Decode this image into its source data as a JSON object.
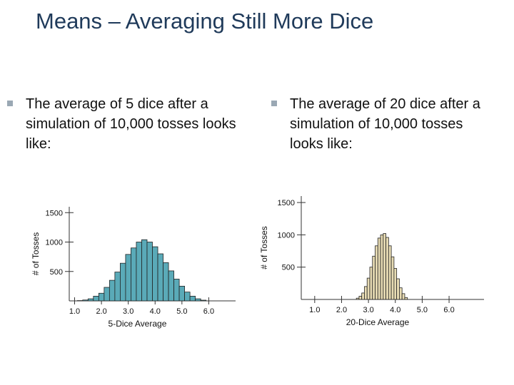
{
  "slide": {
    "title": "Means – Averaging Still More Dice",
    "bullets": [
      "The average of 5 dice after a simulation of 10,000 tosses looks like:",
      "The average of 20 dice after a simulation of 10,000 tosses looks like:"
    ]
  },
  "chart_data": [
    {
      "type": "bar",
      "xlabel": "5-Dice Average",
      "ylabel": "# of Tosses",
      "xlim": [
        0.8,
        7.0
      ],
      "ylim": [
        0,
        1600
      ],
      "xticks": [
        "1.0",
        "2.0",
        "3.0",
        "4.0",
        "5.0",
        "6.0"
      ],
      "yticks": [
        "500",
        "1000",
        "1500"
      ],
      "bar_color": "#5aaab8",
      "bin_width": 0.2,
      "x": [
        1.2,
        1.4,
        1.6,
        1.8,
        2.0,
        2.2,
        2.4,
        2.6,
        2.8,
        3.0,
        3.2,
        3.4,
        3.6,
        3.8,
        4.0,
        4.2,
        4.4,
        4.6,
        4.8,
        5.0,
        5.2,
        5.4,
        5.6,
        5.8
      ],
      "values": [
        5,
        15,
        35,
        80,
        130,
        230,
        350,
        490,
        640,
        790,
        900,
        1000,
        1040,
        1000,
        920,
        800,
        650,
        510,
        370,
        250,
        150,
        80,
        35,
        12
      ]
    },
    {
      "type": "bar",
      "xlabel": "20-Dice Average",
      "ylabel": "# of Tosses",
      "xlim": [
        0.5,
        7.3
      ],
      "ylim": [
        0,
        1600
      ],
      "xticks": [
        "1.0",
        "2.0",
        "3.0",
        "4.0",
        "5.0",
        "6.0"
      ],
      "yticks": [
        "500",
        "1000",
        "1500"
      ],
      "bar_color": "#e8dcb4",
      "bin_width": 0.1,
      "x": [
        2.6,
        2.7,
        2.8,
        2.9,
        3.0,
        3.1,
        3.2,
        3.3,
        3.4,
        3.5,
        3.6,
        3.7,
        3.8,
        3.9,
        4.0,
        4.1,
        4.2,
        4.3,
        4.4
      ],
      "values": [
        20,
        50,
        100,
        200,
        330,
        500,
        670,
        830,
        950,
        1000,
        1020,
        960,
        830,
        660,
        480,
        320,
        180,
        90,
        30
      ]
    }
  ]
}
